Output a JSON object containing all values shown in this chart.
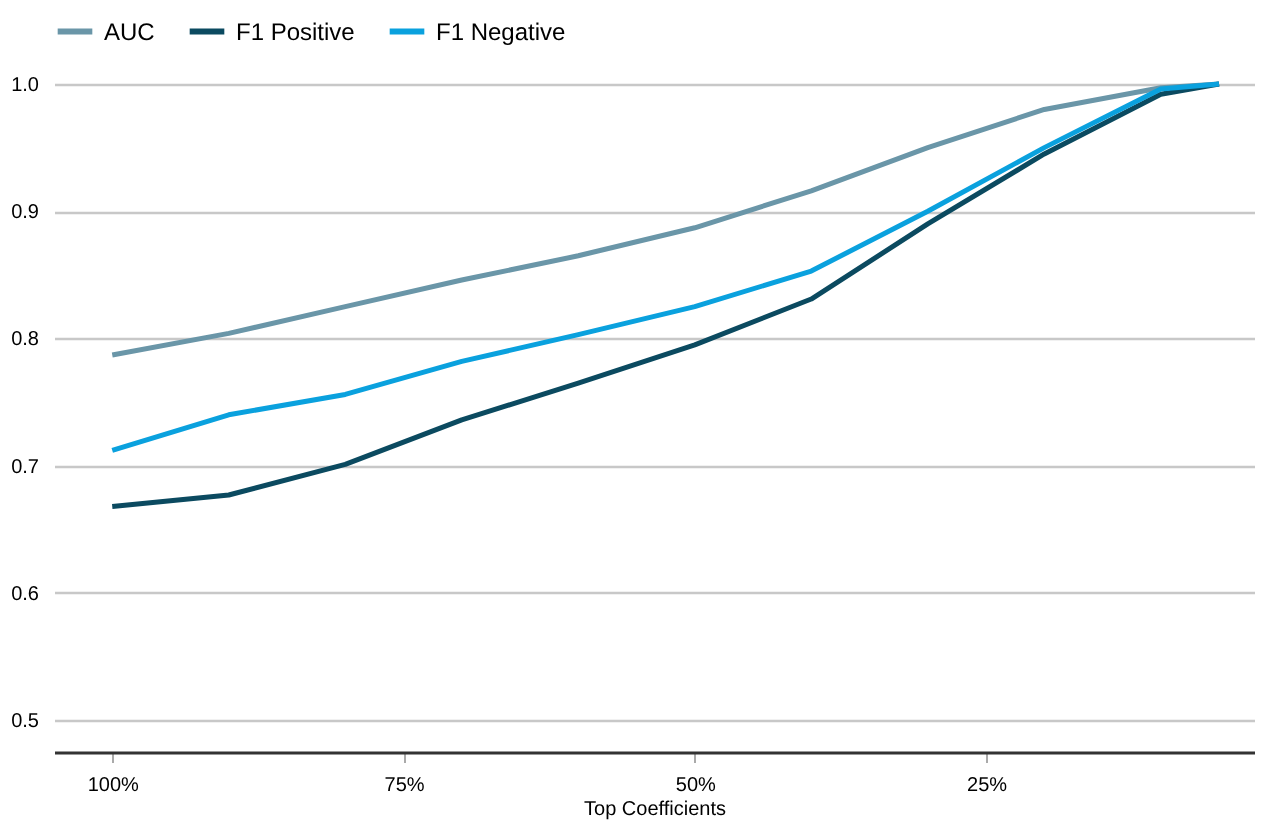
{
  "chart_data": {
    "type": "line",
    "xlabel": "Top Coefficients",
    "legend": "top",
    "grid": "y",
    "marker": "none",
    "line_style": "solid",
    "x": [
      100,
      90,
      80,
      70,
      60,
      50,
      40,
      30,
      20,
      10,
      5
    ],
    "xlim": [
      105,
      2
    ],
    "xticks": [
      {
        "value": 100,
        "label": "100%"
      },
      {
        "value": 75,
        "label": "75%"
      },
      {
        "value": 50,
        "label": "50%"
      },
      {
        "value": 25,
        "label": "25%"
      }
    ],
    "ylim": [
      0.475,
      1.0
    ],
    "yticks": [
      0.5,
      0.6,
      0.7,
      0.8,
      0.9,
      {
        "value": 1,
        "label": "1.0"
      }
    ],
    "series": [
      {
        "name": "AUC",
        "color": "#6a96a8",
        "values": [
          0.787,
          0.804,
          0.825,
          0.846,
          0.865,
          0.887,
          0.916,
          0.95,
          0.98,
          0.997,
          1.0
        ]
      },
      {
        "name": "F1 Positive",
        "color": "#0b4a60",
        "values": [
          0.668,
          0.677,
          0.701,
          0.736,
          0.765,
          0.795,
          0.831,
          0.89,
          0.945,
          0.992,
          1.0
        ]
      },
      {
        "name": "F1 Negative",
        "color": "#0aa1de",
        "values": [
          0.712,
          0.74,
          0.756,
          0.782,
          0.803,
          0.825,
          0.853,
          0.9,
          0.95,
          0.996,
          1.0
        ]
      }
    ]
  }
}
